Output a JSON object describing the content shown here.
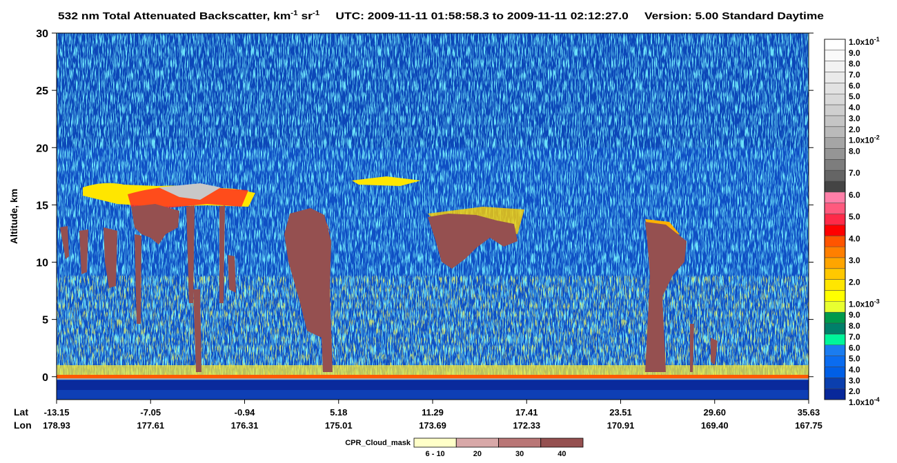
{
  "chart_data": {
    "type": "curtain",
    "title": {
      "main": "532 nm Total Attenuated Backscatter, km",
      "unit_exp1": "-1",
      "unit2": " sr",
      "unit_exp2": "-1",
      "utc": "UTC:  2009-11-11 01:58:58.3  to  2009-11-11 02:12:27.0",
      "version": "Version: 5.00  Standard  Daytime"
    },
    "y_label": "Altitude, km",
    "ylim": [
      -2,
      30
    ],
    "yticks": [
      0,
      5,
      10,
      15,
      20,
      25,
      30
    ],
    "lat_label": "Lat",
    "lon_label": "Lon",
    "lat": [
      -13.15,
      -7.05,
      -0.94,
      5.18,
      11.29,
      17.41,
      23.51,
      {
        "value": 29.6,
        "label": "29.60"
      },
      35.63
    ],
    "lon": [
      178.93,
      177.61,
      176.31,
      175.01,
      173.69,
      172.33,
      170.91,
      {
        "value": 169.4,
        "label": "169.40"
      },
      167.75
    ],
    "colorbar": {
      "ticks": [
        {
          "value": 0.1,
          "label": "1.0x10",
          "exponent": "-1"
        },
        {
          "value": 0.09,
          "label": "9.0"
        },
        {
          "value": 0.08,
          "label": "8.0"
        },
        {
          "value": 0.07,
          "label": "7.0"
        },
        {
          "value": 0.06,
          "label": "6.0"
        },
        {
          "value": 0.05,
          "label": "5.0"
        },
        {
          "value": 0.04,
          "label": "4.0"
        },
        {
          "value": 0.03,
          "label": "3.0"
        },
        {
          "value": 0.02,
          "label": "2.0"
        },
        {
          "value": 0.01,
          "label": "1.0x10",
          "exponent": "-2"
        },
        {
          "value": 0.008,
          "label": "8.0"
        },
        0.0075,
        {
          "value": 0.007,
          "label": "7.0"
        },
        0.0065,
        {
          "value": 0.006,
          "label": "6.0"
        },
        0.0055,
        {
          "value": 0.005,
          "label": "5.0"
        },
        0.0045,
        {
          "value": 0.004,
          "label": "4.0"
        },
        0.0035,
        {
          "value": 0.003,
          "label": "3.0"
        },
        0.0025,
        {
          "value": 0.002,
          "label": "2.0"
        },
        0.0015,
        {
          "value": 0.001,
          "label": "1.0x10",
          "exponent": "-3"
        },
        {
          "value": 0.0009,
          "label": "9.0"
        },
        {
          "value": 0.0008,
          "label": "8.0"
        },
        {
          "value": 0.0007,
          "label": "7.0"
        },
        {
          "value": 0.0006,
          "label": "6.0"
        },
        {
          "value": 0.0005,
          "label": "5.0"
        },
        {
          "value": 0.0004,
          "label": "4.0"
        },
        {
          "value": 0.0003,
          "label": "3.0"
        },
        {
          "value": 0.0002,
          "label": "2.0"
        },
        {
          "value": 0.0001,
          "label": "1.0x10",
          "exponent": "-4"
        }
      ],
      "colors": [
        "#ffffff",
        "#fafafa",
        "#f2f2f2",
        "#eaeaea",
        "#e2e2e2",
        "#d9d9d9",
        "#cfcfcf",
        "#c5c5c5",
        "#bababa",
        "#a5a5a5",
        "#959595",
        "#7d7d7d",
        "#656565",
        "#444444",
        "#ff7fa8",
        "#ff5a7e",
        "#ff2a48",
        "#ff0000",
        "#ff5500",
        "#ff7f00",
        "#ffa500",
        "#ffc800",
        "#ffe600",
        "#ffff00",
        "#e8ff30",
        "#009a4c",
        "#00806a",
        "#00f59a",
        "#1a7cf0",
        "#0a6cf0",
        "#005fe6",
        "#0b3fae",
        "#08289a"
      ]
    },
    "cpr_legend": {
      "title": "CPR_Cloud_mask",
      "labels": [
        "6 - 10",
        "20",
        "30",
        "40"
      ],
      "colors": [
        "#ffffc8",
        "#d8a8a8",
        "#b97676",
        "#955050"
      ]
    }
  }
}
